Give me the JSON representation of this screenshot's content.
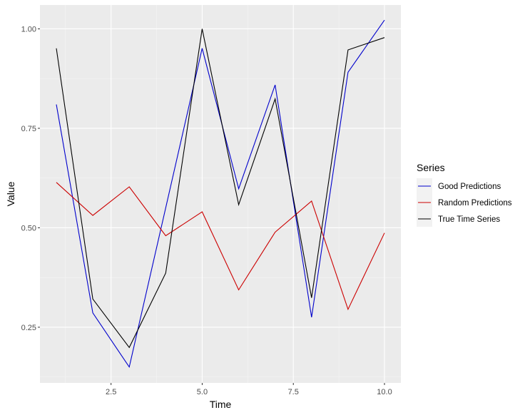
{
  "chart_data": {
    "type": "line",
    "title": "",
    "xlabel": "Time",
    "ylabel": "Value",
    "x": [
      1,
      2,
      3,
      4,
      5,
      6,
      7,
      8,
      9,
      10
    ],
    "xlim": [
      0.55,
      10.45
    ],
    "ylim": [
      0.11,
      1.06
    ],
    "x_ticks": [
      2.5,
      5.0,
      7.5,
      10.0
    ],
    "x_tick_labels": [
      "2.5",
      "5.0",
      "7.5",
      "10.0"
    ],
    "y_ticks": [
      0.25,
      0.5,
      0.75,
      1.0
    ],
    "y_tick_labels": [
      "0.25",
      "0.50",
      "0.75",
      "1.00"
    ],
    "grid": true,
    "legend_position": "right",
    "legend_title": "Series",
    "series": [
      {
        "name": "Good Predictions",
        "color": "#0000cc",
        "values": [
          0.81,
          0.286,
          0.15,
          0.55,
          0.951,
          0.598,
          0.859,
          0.275,
          0.891,
          1.022
        ]
      },
      {
        "name": "Random Predictions",
        "color": "#cc0000",
        "values": [
          0.614,
          0.531,
          0.603,
          0.48,
          0.54,
          0.344,
          0.489,
          0.567,
          0.295,
          0.487
        ]
      },
      {
        "name": "True Time Series",
        "color": "#000000",
        "values": [
          0.951,
          0.321,
          0.199,
          0.386,
          1.0,
          0.558,
          0.824,
          0.324,
          0.947,
          0.978
        ]
      }
    ]
  },
  "colors": {
    "panel_background": "#ebebeb",
    "grid_major": "#ffffff",
    "grid_minor": "#f5f5f5",
    "tick_color": "#333333"
  }
}
